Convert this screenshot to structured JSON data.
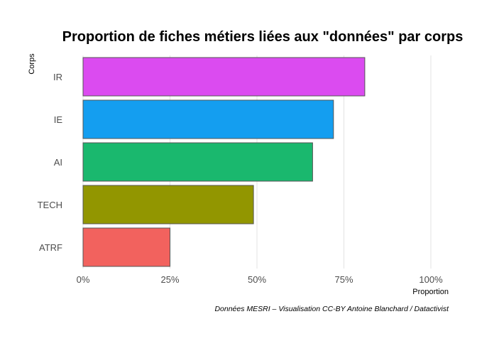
{
  "chart_data": {
    "type": "bar",
    "orientation": "horizontal",
    "title": "Proportion de fiches métiers liées aux \"données\" par corps",
    "xlabel": "Proportion",
    "ylabel": "Corps",
    "caption": "Données MESRI – Visualisation CC-BY Antoine Blanchard / Datactivist",
    "categories": [
      "IR",
      "IE",
      "AI",
      "TECH",
      "ATRF"
    ],
    "values": [
      0.81,
      0.72,
      0.66,
      0.49,
      0.25
    ],
    "colors": [
      "#DB4BF0",
      "#149EF0",
      "#1AB86E",
      "#929600",
      "#F2625E"
    ],
    "xlim": [
      0,
      1
    ],
    "xticks": [
      0,
      0.25,
      0.5,
      0.75,
      1
    ],
    "xtick_labels": [
      "0%",
      "25%",
      "50%",
      "75%",
      "100%"
    ],
    "grid": true,
    "legend": "none"
  }
}
